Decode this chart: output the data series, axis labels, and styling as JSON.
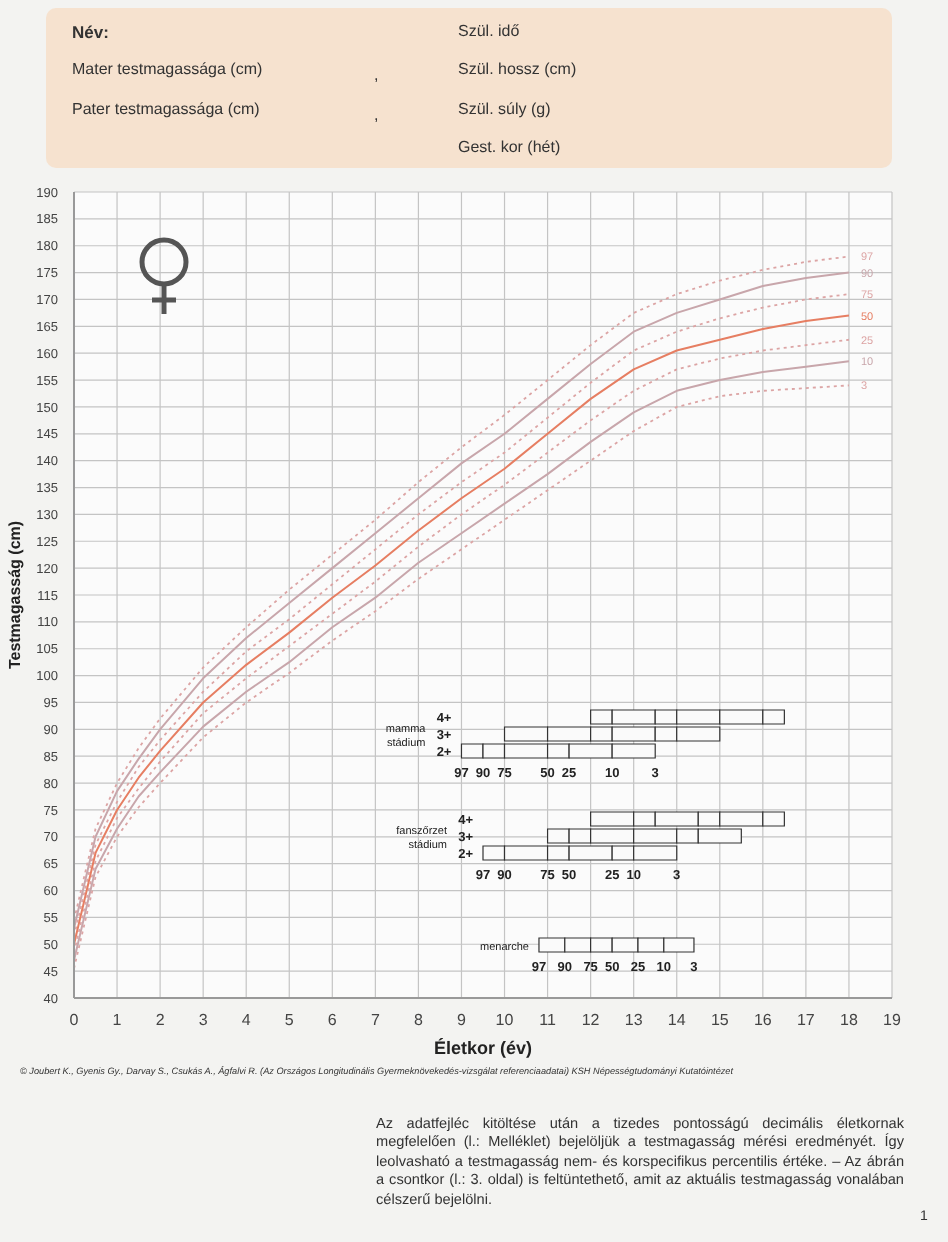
{
  "chart_data": [
    {
      "type": "line",
      "xlabel": "Életkor (év)",
      "ylabel": "Testmagasság (cm)",
      "x": [
        0,
        0.5,
        1,
        1.5,
        2,
        3,
        4,
        5,
        6,
        7,
        8,
        9,
        10,
        11,
        12,
        13,
        14,
        15,
        16,
        17,
        18
      ],
      "series": [
        {
          "name": "97",
          "color": "#dca4a4",
          "line_style": "dotted",
          "values": [
            54.5,
            71.5,
            80,
            86.5,
            92,
            101.5,
            109,
            116,
            122.5,
            129,
            136,
            142.5,
            148.5,
            155,
            161.5,
            167.5,
            171,
            173.5,
            175.5,
            177,
            178
          ]
        },
        {
          "name": "90",
          "color": "#c8a6ab",
          "line_style": "solid",
          "values": [
            53,
            70,
            78.5,
            84.5,
            90,
            99.5,
            107,
            113.5,
            120,
            126.5,
            133,
            139.5,
            145,
            151.5,
            158,
            164,
            167.5,
            170,
            172.5,
            174,
            175
          ]
        },
        {
          "name": "75",
          "color": "#dca4a4",
          "line_style": "dotted",
          "values": [
            51.5,
            68.5,
            76.5,
            83,
            88,
            97,
            104.5,
            110.5,
            117,
            123.5,
            130,
            136,
            141.5,
            148,
            154.5,
            160.5,
            164,
            166.5,
            168.5,
            170,
            171
          ]
        },
        {
          "name": "50",
          "color": "#e67e62",
          "line_style": "solid",
          "values": [
            50,
            67,
            75,
            81,
            86,
            95,
            102,
            108,
            114.5,
            120.5,
            127,
            133,
            138.5,
            145,
            151.5,
            157,
            160.5,
            162.5,
            164.5,
            166,
            167
          ]
        },
        {
          "name": "25",
          "color": "#dca4a4",
          "line_style": "dotted",
          "values": [
            48.5,
            65.5,
            73.5,
            79,
            84,
            93,
            99.5,
            105.5,
            111.5,
            117.5,
            124,
            130,
            135.5,
            141.5,
            147.5,
            153,
            157,
            159,
            160.5,
            161.5,
            162.5
          ]
        },
        {
          "name": "10",
          "color": "#c8a6ab",
          "line_style": "solid",
          "values": [
            47,
            64,
            71.5,
            77.5,
            82,
            90.5,
            97,
            102.5,
            109,
            114.5,
            121,
            126.5,
            132,
            137.5,
            143.5,
            149,
            153,
            155,
            156.5,
            157.5,
            158.5
          ]
        },
        {
          "name": "3",
          "color": "#dca4a4",
          "line_style": "dotted",
          "values": [
            45.5,
            62.5,
            70,
            75.5,
            80,
            88.5,
            95,
            100.5,
            106.5,
            112,
            118,
            123.5,
            129,
            134.5,
            140,
            145.5,
            150,
            152,
            153,
            153.5,
            154
          ]
        }
      ],
      "xlim": [
        0,
        19
      ],
      "xticks": [
        0,
        1,
        2,
        3,
        4,
        5,
        6,
        7,
        8,
        9,
        10,
        11,
        12,
        13,
        14,
        15,
        16,
        17,
        18,
        19
      ],
      "ylim": [
        40,
        190
      ],
      "yticks": [
        40,
        45,
        50,
        55,
        60,
        65,
        70,
        75,
        80,
        85,
        90,
        95,
        100,
        105,
        110,
        115,
        120,
        125,
        130,
        135,
        140,
        145,
        150,
        155,
        160,
        165,
        170,
        175,
        180,
        185,
        190
      ],
      "grid": true,
      "annotations": [
        "Név:",
        "Mater testmagassága (cm)",
        ",",
        "Pater testmagassága (cm)",
        ",",
        "Szül. idő",
        "Szül. hossz (cm)",
        "Szül. súly (g)",
        "Gest. kor (hét)",
        "© Joubert K., Gyenis Gy., Darvay S., Csukás A., Ágfalvi R. (Az Országos Longitudinális Gyermeknövekedés-vizsgálat referenciaadatai) KSH Népességtudományi Kutatóintézet",
        "Az adatfejléc kitöltése után a tizedes pontosságú decimális életkornak megfelelően (l.: Melléklet) bejelöljük a testmagasság mérési eredményét. Így leolvasható a testmagasság nem- és korspecifikus percentilis értéke. – Az ábrán a csontkor (l.: 3. oldal) is feltüntethető, amit az aktuális testmagasság vonalában célszerű bejelölni.",
        "1"
      ]
    },
    {
      "type": "bar",
      "orientation": "horizontal",
      "ylabel": "mamma stádium",
      "categories": [
        "4+",
        "3+",
        "2+"
      ],
      "series": [
        {
          "color": "#fafafa",
          "base": [
            12,
            10,
            9
          ],
          "values": [
            0.5,
            1,
            0.5
          ]
        },
        {
          "color": "#fafafa",
          "base": [
            12.5,
            11,
            9.5
          ],
          "values": [
            1,
            1,
            0.5
          ]
        },
        {
          "color": "#fafafa",
          "base": [
            13.5,
            12,
            10
          ],
          "values": [
            0.5,
            0.5,
            1
          ]
        },
        {
          "color": "#fafafa",
          "base": [
            14,
            12.5,
            11
          ],
          "values": [
            1,
            1,
            0.5
          ]
        },
        {
          "color": "#fafafa",
          "base": [
            15,
            13.5,
            11.5
          ],
          "values": [
            1,
            0.5,
            1
          ]
        },
        {
          "color": "#fafafa",
          "base": [
            16,
            14,
            12.5
          ],
          "values": [
            0.5,
            1,
            1
          ]
        }
      ],
      "xlim": [
        0,
        19
      ],
      "tick_labels": "y",
      "annotations": [
        "97",
        "90",
        "75",
        "50",
        "25",
        "10",
        "3"
      ]
    },
    {
      "type": "bar",
      "orientation": "horizontal",
      "ylabel": "fanszőrzet stádium",
      "categories": [
        "4+",
        "3+",
        "2+"
      ],
      "series": [
        {
          "color": "#fafafa",
          "base": [
            12,
            11,
            9.5
          ],
          "values": [
            1,
            0.5,
            0.5
          ]
        },
        {
          "color": "#fafafa",
          "base": [
            13,
            11.5,
            10
          ],
          "values": [
            0.5,
            0.5,
            1
          ]
        },
        {
          "color": "#fafafa",
          "base": [
            13.5,
            12,
            11
          ],
          "values": [
            1,
            1,
            0.5
          ]
        },
        {
          "color": "#fafafa",
          "base": [
            14.5,
            13,
            11.5
          ],
          "values": [
            0.5,
            1,
            1
          ]
        },
        {
          "color": "#fafafa",
          "base": [
            15,
            14,
            12.5
          ],
          "values": [
            1,
            0.5,
            0.5
          ]
        },
        {
          "color": "#fafafa",
          "base": [
            16,
            14.5,
            13
          ],
          "values": [
            0.5,
            1,
            1
          ]
        }
      ],
      "xlim": [
        0,
        19
      ],
      "tick_labels": "y",
      "annotations": [
        "97",
        "90",
        "75",
        "50",
        "25",
        "10",
        "3"
      ]
    },
    {
      "type": "bar",
      "orientation": "horizontal",
      "categories": [
        "menarche"
      ],
      "series": [
        {
          "color": "#fafafa",
          "base": [
            10.8
          ],
          "values": [
            0.6
          ]
        },
        {
          "color": "#fafafa",
          "base": [
            11.4
          ],
          "values": [
            0.6
          ]
        },
        {
          "color": "#fafafa",
          "base": [
            12
          ],
          "values": [
            0.5
          ]
        },
        {
          "color": "#fafafa",
          "base": [
            12.5
          ],
          "values": [
            0.6
          ]
        },
        {
          "color": "#fafafa",
          "base": [
            13.1
          ],
          "values": [
            0.6
          ]
        },
        {
          "color": "#fafafa",
          "base": [
            13.7
          ],
          "values": [
            0.7
          ]
        }
      ],
      "xlim": [
        0,
        19
      ],
      "tick_labels": "y",
      "annotations": [
        "97",
        "90",
        "75",
        "50",
        "25",
        "10",
        "3"
      ]
    }
  ]
}
